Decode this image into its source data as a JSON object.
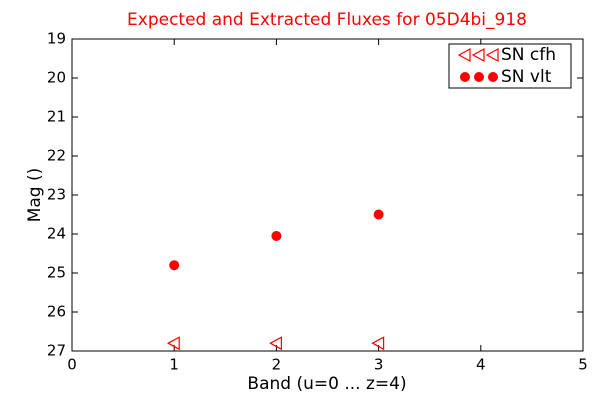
{
  "chart_data": {
    "type": "scatter",
    "title": "Expected and Extracted Fluxes for 05D4bi_918",
    "x_label": "Band (u=0 ... z=4)",
    "y_label": "Mag ()",
    "xlim": [
      0,
      5
    ],
    "xticks": [
      0,
      1,
      2,
      3,
      4,
      5
    ],
    "ylim": [
      27,
      19
    ],
    "yticks": [
      19,
      20,
      21,
      22,
      23,
      24,
      25,
      26,
      27
    ],
    "legend": "upper right",
    "series": [
      {
        "name": "SN cfh",
        "color": "#ff0000",
        "marker": "triangle-left",
        "filled": false,
        "x": [
          1,
          2,
          3
        ],
        "values": [
          26.8,
          26.8,
          26.8
        ]
      },
      {
        "name": "SN vlt",
        "color": "#ff0000",
        "marker": "circle",
        "filled": true,
        "x": [
          1,
          2,
          3
        ],
        "values": [
          24.8,
          24.05,
          23.5
        ]
      }
    ]
  }
}
